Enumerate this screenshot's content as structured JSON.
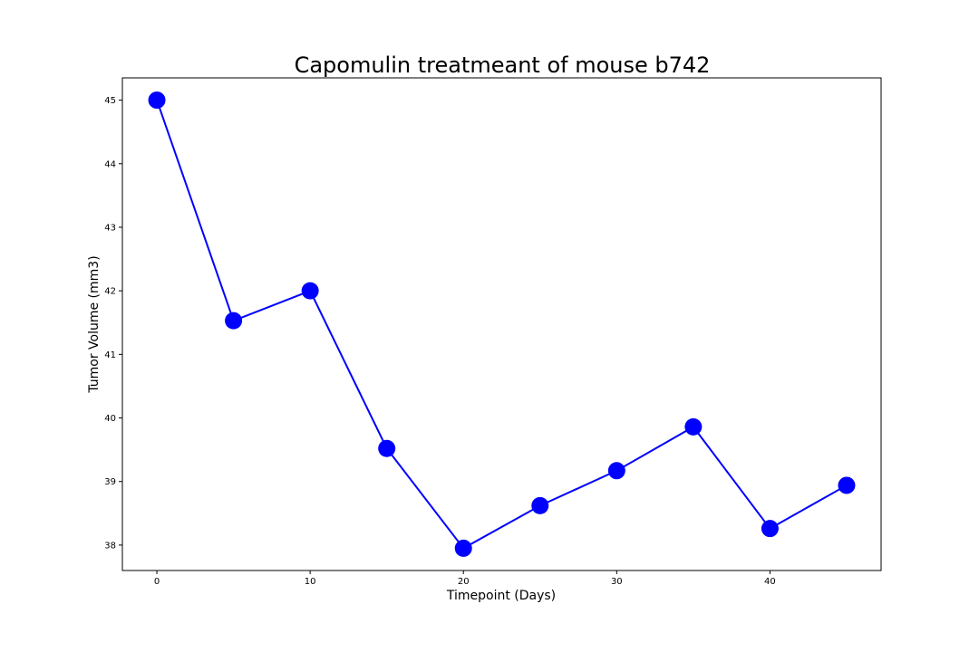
{
  "chart_data": {
    "type": "line",
    "title": "Capomulin treatmeant of mouse b742",
    "xlabel": "Timepoint (Days)",
    "ylabel": "Tumor Volume (mm3)",
    "x": [
      0,
      5,
      10,
      15,
      20,
      25,
      30,
      35,
      40,
      45
    ],
    "series": [
      {
        "values": [
          45.0,
          41.53,
          42.0,
          39.52,
          37.95,
          38.62,
          39.17,
          39.86,
          38.26,
          38.94
        ]
      }
    ],
    "xlim": [
      -2.25,
      47.25
    ],
    "ylim": [
      37.6,
      45.35
    ],
    "xticks": [
      0,
      10,
      20,
      30,
      40
    ],
    "yticks": [
      38,
      39,
      40,
      41,
      42,
      43,
      44,
      45
    ],
    "grid": false,
    "line_color": "#0000ff",
    "marker_color": "#0000ff"
  }
}
